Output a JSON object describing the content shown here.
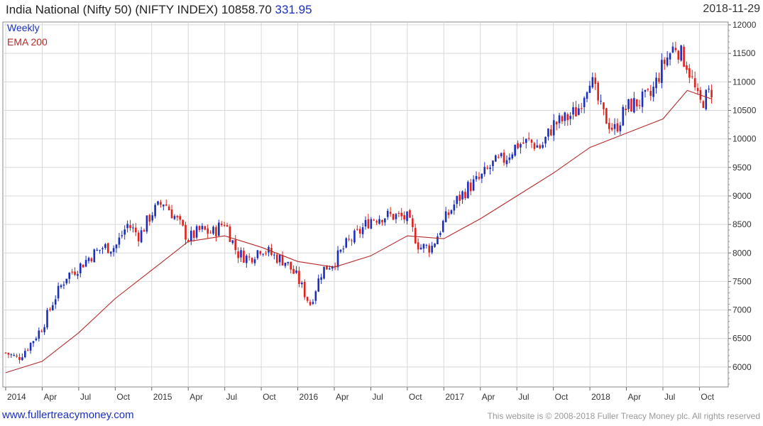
{
  "header": {
    "title": "India National (Nifty 50) (NIFTY INDEX)",
    "last": "10858.70",
    "change": "331.95",
    "date": "2018-11-29"
  },
  "legend": {
    "period": "Weekly",
    "ema": "EMA 200"
  },
  "footer": {
    "site": "www.fullertreacymoney.com",
    "copyright": "This website is © 2008-2018 Fuller Treacy Money plc. All rights reserved"
  },
  "colors": {
    "up": "#1a2fbf",
    "down": "#e0201b",
    "ema": "#b52a2a",
    "grid": "#d8d8d8"
  },
  "chart_data": {
    "type": "line",
    "subtype": "candlestick-ohlc",
    "title": "India National (Nifty 50) (NIFTY INDEX)",
    "frequency": "Weekly",
    "x_tick_labels": [
      "2014",
      "Apr",
      "Jul",
      "Oct",
      "2015",
      "Apr",
      "Jul",
      "Oct",
      "2016",
      "Apr",
      "Jul",
      "Oct",
      "2017",
      "Apr",
      "Jul",
      "Oct",
      "2018",
      "Apr",
      "Jul",
      "Oct"
    ],
    "y_ticks": [
      6000,
      6500,
      7000,
      7500,
      8000,
      8500,
      9000,
      9500,
      10000,
      10500,
      11000,
      11500,
      12000
    ],
    "ylim": [
      5650,
      12050
    ],
    "grid": true,
    "y_axis_side": "right",
    "series": [
      {
        "name": "Weekly",
        "kind": "close-approx",
        "x": [
          "2014-01",
          "2014-02",
          "2014-03",
          "2014-04",
          "2014-05",
          "2014-06",
          "2014-07",
          "2014-08",
          "2014-09",
          "2014-10",
          "2014-11",
          "2014-12",
          "2015-01",
          "2015-02",
          "2015-03",
          "2015-04",
          "2015-05",
          "2015-06",
          "2015-07",
          "2015-08",
          "2015-09",
          "2015-10",
          "2015-11",
          "2015-12",
          "2016-01",
          "2016-02",
          "2016-03",
          "2016-04",
          "2016-05",
          "2016-06",
          "2016-07",
          "2016-08",
          "2016-09",
          "2016-10",
          "2016-11",
          "2016-12",
          "2017-01",
          "2017-02",
          "2017-03",
          "2017-04",
          "2017-05",
          "2017-06",
          "2017-07",
          "2017-08",
          "2017-09",
          "2017-10",
          "2017-11",
          "2017-12",
          "2018-01",
          "2018-02",
          "2018-03",
          "2018-04",
          "2018-05",
          "2018-06",
          "2018-07",
          "2018-08",
          "2018-09",
          "2018-10",
          "2018-11"
        ],
        "values": [
          6250,
          6150,
          6400,
          6700,
          7200,
          7600,
          7750,
          7950,
          8100,
          8100,
          8500,
          8300,
          8700,
          8900,
          8600,
          8250,
          8400,
          8350,
          8550,
          8000,
          7900,
          8100,
          7950,
          7850,
          7550,
          7100,
          7700,
          7850,
          8150,
          8350,
          8600,
          8650,
          8650,
          8600,
          8100,
          8100,
          8550,
          8900,
          9150,
          9300,
          9550,
          9650,
          9900,
          9950,
          9850,
          10250,
          10350,
          10500,
          11100,
          10450,
          10150,
          10550,
          10650,
          10750,
          11300,
          11650,
          11300,
          10600,
          10850
        ]
      },
      {
        "name": "EMA 200",
        "x": [
          "2014-01",
          "2014-04",
          "2014-07",
          "2014-10",
          "2015-01",
          "2015-04",
          "2015-07",
          "2015-10",
          "2016-01",
          "2016-04",
          "2016-07",
          "2016-10",
          "2017-01",
          "2017-04",
          "2017-07",
          "2017-10",
          "2018-01",
          "2018-04",
          "2018-07",
          "2018-09",
          "2018-11"
        ],
        "values": [
          5900,
          6100,
          6600,
          7200,
          7700,
          8200,
          8300,
          8100,
          7850,
          7750,
          7950,
          8300,
          8250,
          8600,
          9000,
          9400,
          9850,
          10100,
          10350,
          10850,
          10700
        ]
      }
    ]
  }
}
